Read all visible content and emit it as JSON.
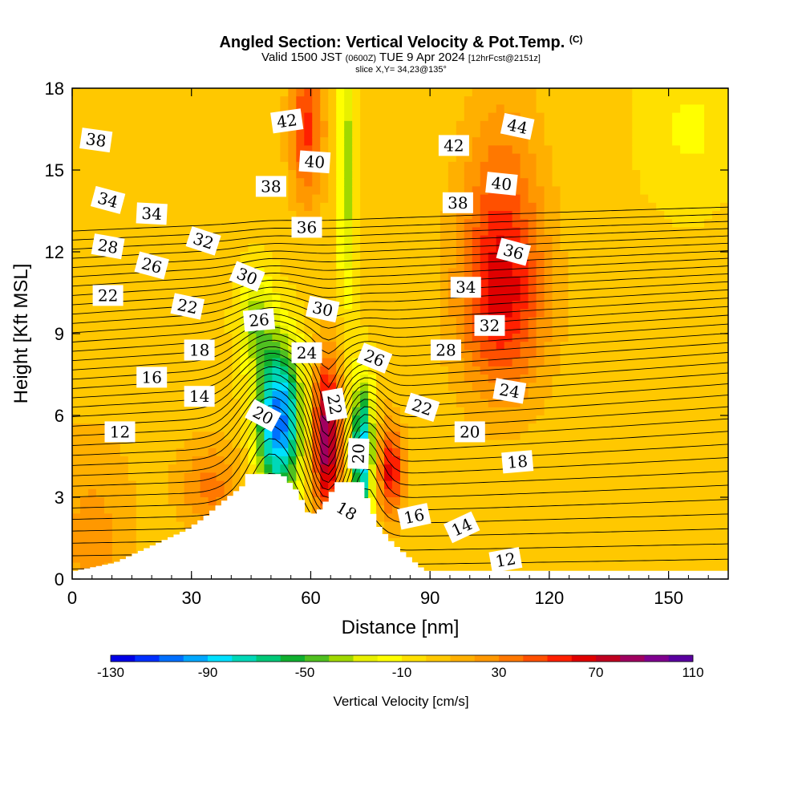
{
  "title": {
    "main": "Angled Section: Vertical Velocity & Pot.Temp.",
    "main_suffix": "(C)",
    "valid_prefix": "Valid 1500 JST",
    "valid_utc": "(0600Z)",
    "valid_date": "TUE 9 Apr 2024",
    "valid_fcst": "[12hrFcst@2151z]",
    "slice": "slice X,Y= 34,23@135°"
  },
  "colors": {
    "terrain": "#ffffff",
    "contour": "#000000",
    "label_box": "#ffffff"
  },
  "chart_data": {
    "type": "heatmap",
    "xlabel": "Distance [nm]",
    "ylabel": "Height [Kft MSL]",
    "xlim": [
      0,
      165
    ],
    "ylim": [
      0,
      18
    ],
    "x_ticks": [
      0,
      30,
      60,
      90,
      120,
      150
    ],
    "y_ticks": [
      0,
      3,
      6,
      9,
      12,
      15,
      18
    ],
    "colorbar": {
      "label": "Vertical Velocity [cm/s]",
      "min": -130,
      "max": 110,
      "step": 10,
      "tick_values": [
        -130,
        -90,
        -50,
        -10,
        30,
        70,
        110
      ],
      "colors": [
        "#0000e6",
        "#0030ff",
        "#0070ff",
        "#00a8ff",
        "#00e0ff",
        "#00d8b8",
        "#00c878",
        "#10b030",
        "#50c020",
        "#a0d800",
        "#e8f000",
        "#ffff00",
        "#ffe000",
        "#ffc800",
        "#ffb000",
        "#ff9800",
        "#ff7800",
        "#ff5000",
        "#ff2000",
        "#e00000",
        "#c00020",
        "#a00060",
        "#800090",
        "#5a00a0"
      ]
    },
    "terrain": {
      "description_points": [
        [
          0,
          0.3
        ],
        [
          10,
          0.6
        ],
        [
          16,
          1.0
        ],
        [
          22,
          1.4
        ],
        [
          28,
          1.8
        ],
        [
          32,
          2.2
        ],
        [
          36,
          2.7
        ],
        [
          42,
          3.4
        ],
        [
          43,
          3.85
        ],
        [
          52,
          3.85
        ],
        [
          56,
          3.2
        ],
        [
          59,
          2.3
        ],
        [
          62,
          2.6
        ],
        [
          66,
          3.55
        ],
        [
          72,
          3.55
        ],
        [
          76,
          2.0
        ],
        [
          80,
          1.3
        ],
        [
          84,
          0.8
        ],
        [
          88,
          0.3
        ],
        [
          165,
          0.3
        ]
      ]
    },
    "wind_cells": [
      {
        "x": 52,
        "y": 5.8,
        "w": -110,
        "sx": 4,
        "sy": 2.0
      },
      {
        "x": 46,
        "y": 9.5,
        "w": -40,
        "sx": 3,
        "sy": 1.2
      },
      {
        "x": 64,
        "y": 5.2,
        "w": 90,
        "sx": 2.5,
        "sy": 2.0
      },
      {
        "x": 73,
        "y": 4.6,
        "w": -95,
        "sx": 2.0,
        "sy": 1.8
      },
      {
        "x": 80,
        "y": 4.0,
        "w": 60,
        "sx": 2.5,
        "sy": 1.2
      },
      {
        "x": 69,
        "y": 15.0,
        "w": -40,
        "sx": 1.5,
        "sy": 3.5
      },
      {
        "x": 59,
        "y": 16.5,
        "w": 50,
        "sx": 3,
        "sy": 2.0
      },
      {
        "x": 108,
        "y": 10.0,
        "w": 50,
        "sx": 8,
        "sy": 2.5
      },
      {
        "x": 108,
        "y": 14.0,
        "w": 30,
        "sx": 7,
        "sy": 3.0
      },
      {
        "x": 35,
        "y": 3.4,
        "w": 30,
        "sx": 6,
        "sy": 1.2
      },
      {
        "x": 5,
        "y": 1.5,
        "w": 20,
        "sx": 8,
        "sy": 3.0
      },
      {
        "x": 155,
        "y": 16.5,
        "w": -15,
        "sx": 8,
        "sy": 2.0
      }
    ],
    "potential_temperature": {
      "units": "C",
      "contour_interval": 1,
      "levels_min": 10,
      "levels_max": 45
    },
    "contour_labels": [
      {
        "text": "38",
        "x": 6,
        "y": 16.1,
        "angle": 8
      },
      {
        "text": "42",
        "x": 54,
        "y": 16.8,
        "angle": -8
      },
      {
        "text": "44",
        "x": 112,
        "y": 16.6,
        "angle": 12
      },
      {
        "text": "42",
        "x": 96,
        "y": 15.9,
        "angle": 0
      },
      {
        "text": "40",
        "x": 61,
        "y": 15.3,
        "angle": 4
      },
      {
        "text": "40",
        "x": 108,
        "y": 14.5,
        "angle": 6
      },
      {
        "text": "38",
        "x": 50,
        "y": 14.4,
        "angle": 0
      },
      {
        "text": "38",
        "x": 97,
        "y": 13.8,
        "angle": 0
      },
      {
        "text": "34",
        "x": 9,
        "y": 13.9,
        "angle": 15
      },
      {
        "text": "34",
        "x": 20,
        "y": 13.4,
        "angle": 3
      },
      {
        "text": "36",
        "x": 59,
        "y": 12.9,
        "angle": 0
      },
      {
        "text": "32",
        "x": 33,
        "y": 12.4,
        "angle": 18
      },
      {
        "text": "28",
        "x": 9,
        "y": 12.2,
        "angle": 10
      },
      {
        "text": "36",
        "x": 111,
        "y": 12.0,
        "angle": 15
      },
      {
        "text": "26",
        "x": 20,
        "y": 11.5,
        "angle": 15
      },
      {
        "text": "30",
        "x": 44,
        "y": 11.1,
        "angle": 22
      },
      {
        "text": "34",
        "x": 99,
        "y": 10.7,
        "angle": 0
      },
      {
        "text": "22",
        "x": 9,
        "y": 10.4,
        "angle": 0
      },
      {
        "text": "22",
        "x": 29,
        "y": 10.0,
        "angle": 12
      },
      {
        "text": "30",
        "x": 63,
        "y": 9.9,
        "angle": 12
      },
      {
        "text": "26",
        "x": 47,
        "y": 9.5,
        "angle": -5
      },
      {
        "text": "32",
        "x": 105,
        "y": 9.3,
        "angle": 0
      },
      {
        "text": "24",
        "x": 59,
        "y": 8.3,
        "angle": 0
      },
      {
        "text": "18",
        "x": 32,
        "y": 8.4,
        "angle": 0
      },
      {
        "text": "28",
        "x": 94,
        "y": 8.4,
        "angle": 0
      },
      {
        "text": "26",
        "x": 76,
        "y": 8.1,
        "angle": 22
      },
      {
        "text": "16",
        "x": 20,
        "y": 7.4,
        "angle": 0
      },
      {
        "text": "24",
        "x": 110,
        "y": 6.9,
        "angle": 10
      },
      {
        "text": "14",
        "x": 32,
        "y": 6.7,
        "angle": 0
      },
      {
        "text": "22",
        "x": 66,
        "y": 6.4,
        "angle": 80
      },
      {
        "text": "22",
        "x": 88,
        "y": 6.3,
        "angle": 18
      },
      {
        "text": "20",
        "x": 48,
        "y": 6.0,
        "angle": 28
      },
      {
        "text": "20",
        "x": 100,
        "y": 5.4,
        "angle": 0
      },
      {
        "text": "12",
        "x": 12,
        "y": 5.4,
        "angle": 0
      },
      {
        "text": "20",
        "x": 72,
        "y": 4.6,
        "angle": -88
      },
      {
        "text": "18",
        "x": 112,
        "y": 4.3,
        "angle": -5
      },
      {
        "text": "18",
        "x": 69,
        "y": 2.5,
        "angle": 30
      },
      {
        "text": "16",
        "x": 86,
        "y": 2.3,
        "angle": -12
      },
      {
        "text": "14",
        "x": 98,
        "y": 1.9,
        "angle": -25
      },
      {
        "text": "12",
        "x": 109,
        "y": 0.7,
        "angle": -10
      }
    ]
  }
}
